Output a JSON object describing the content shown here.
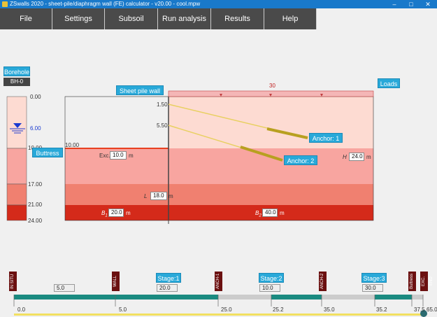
{
  "window": {
    "title": "ZSwalls 2020 - sheet-pile/diaphragm wall (FE) calculator - v20.00 - cool.mpw",
    "controls": [
      "–",
      "□",
      "✕"
    ]
  },
  "menu": [
    "File",
    "Settings",
    "Subsoil",
    "Run analysis",
    "Results",
    "Help"
  ],
  "borehole": {
    "title": "Borehole",
    "id": "BH-0",
    "depths": [
      "0.00",
      "6.00",
      "10.00",
      "17.00",
      "21.00",
      "24.00"
    ],
    "water_level": "6.00"
  },
  "buttress_label": "Buttress",
  "sheet_pile_label": "Sheet pile wall",
  "loads_label": "Loads",
  "load_value": "30",
  "ground_level_left": "10.00",
  "anchor_levels": [
    "1.50",
    "5.50"
  ],
  "anchors": [
    "Anchor: 1",
    "Anchor: 2"
  ],
  "inputs": {
    "exc_label": "Exc.",
    "exc_value": "10.0",
    "exc_unit": "m",
    "L_label": "L",
    "L_value": "18.0",
    "L_unit": "m",
    "H_label": "H",
    "H_value": "24.0",
    "H_unit": "m",
    "B1_label": "B",
    "B1_sub": "1",
    "B1_value": "20.0",
    "B1_unit": "m",
    "B2_label": "B",
    "B2_sub": "2",
    "B2_value": "40.0",
    "B2_unit": "m"
  },
  "timeline": {
    "vertical_tags": [
      "IN SITU",
      "WALL",
      "ANCH-1",
      "ANCH-2",
      "Buttress",
      "EXC. END"
    ],
    "stage_buttons": [
      "Stage:1",
      "Stage:2",
      "Stage:3"
    ],
    "stage_values": [
      "5.0",
      "20.0",
      "10.0",
      "30.0"
    ],
    "ticks": [
      "0.0",
      "5.0",
      "25.0",
      "25.2",
      "35.0",
      "35.2",
      "37.5",
      "65.0"
    ]
  },
  "colors": {
    "layer1": "#fddbd2",
    "layer2": "#f8a5a0",
    "layer3": "#f08070",
    "layer4": "#d42a1a",
    "accent": "#29a9d9",
    "anchor": "#e8d060"
  }
}
